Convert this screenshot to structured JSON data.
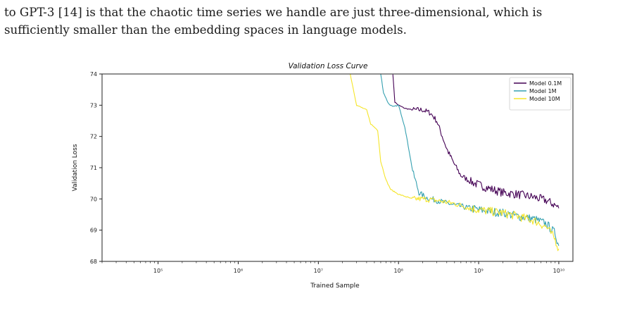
{
  "text": {
    "line1": "to GPT-3 [14] is that the chaotic time series we handle are just three-dimensional, which is",
    "line2": "sufficiently smaller than the embedding spaces in language models."
  },
  "colors": {
    "model_01m": "#440154",
    "model_1m": "#35a0b0",
    "model_10m": "#f5e52a"
  },
  "chart_data": {
    "type": "line",
    "title": "Validation Loss Curve",
    "xlabel": "Trained Sample",
    "ylabel": "Validation Loss",
    "xscale": "log",
    "xlim": [
      20000,
      15000000000
    ],
    "ylim": [
      68,
      74
    ],
    "xticks": [
      "10⁵",
      "10⁶",
      "10⁷",
      "10⁸",
      "10⁹",
      "10¹⁰"
    ],
    "yticks": [
      "68",
      "69",
      "70",
      "71",
      "72",
      "73",
      "74"
    ],
    "legend_position": "top-right",
    "grid": false,
    "series": [
      {
        "name": "Model 0.1M",
        "color": "#440154",
        "x": [
          85000000,
          90000000,
          100000000,
          120000000,
          150000000,
          200000000,
          250000000,
          300000000,
          400000000,
          500000000,
          600000000,
          800000000,
          1000000000,
          1500000000,
          2000000000,
          3000000000,
          5000000000,
          7000000000,
          9000000000,
          10000000000
        ],
        "y": [
          74,
          73.1,
          73.0,
          72.9,
          72.85,
          72.85,
          72.75,
          72.5,
          71.6,
          71.1,
          70.75,
          70.55,
          70.45,
          70.3,
          70.2,
          70.15,
          70.05,
          69.95,
          69.8,
          69.7
        ]
      },
      {
        "name": "Model 1M",
        "color": "#35a0b0",
        "x": [
          60000000,
          65000000,
          75000000,
          85000000,
          100000000,
          120000000,
          150000000,
          180000000,
          220000000,
          300000000,
          500000000,
          800000000,
          1000000000,
          2000000000,
          3000000000,
          5000000000,
          7000000000,
          9000000000,
          10000000000
        ],
        "y": [
          74,
          73.4,
          73.05,
          72.95,
          73.0,
          72.3,
          70.9,
          70.2,
          70.05,
          69.95,
          69.8,
          69.7,
          69.65,
          69.55,
          69.45,
          69.35,
          69.2,
          68.9,
          68.5
        ]
      },
      {
        "name": "Model 10M",
        "color": "#f5e52a",
        "x": [
          25000000,
          30000000,
          40000000,
          45000000,
          55000000,
          60000000,
          70000000,
          80000000,
          100000000,
          150000000,
          200000000,
          300000000,
          500000000,
          800000000,
          1000000000,
          2000000000,
          3000000000,
          5000000000,
          7000000000,
          8000000000,
          9000000000,
          10000000000
        ],
        "y": [
          74,
          73.0,
          72.85,
          72.4,
          72.2,
          71.2,
          70.6,
          70.3,
          70.15,
          70.0,
          70.0,
          69.95,
          69.85,
          69.7,
          69.65,
          69.55,
          69.45,
          69.3,
          69.1,
          68.9,
          68.7,
          68.4
        ]
      }
    ]
  }
}
